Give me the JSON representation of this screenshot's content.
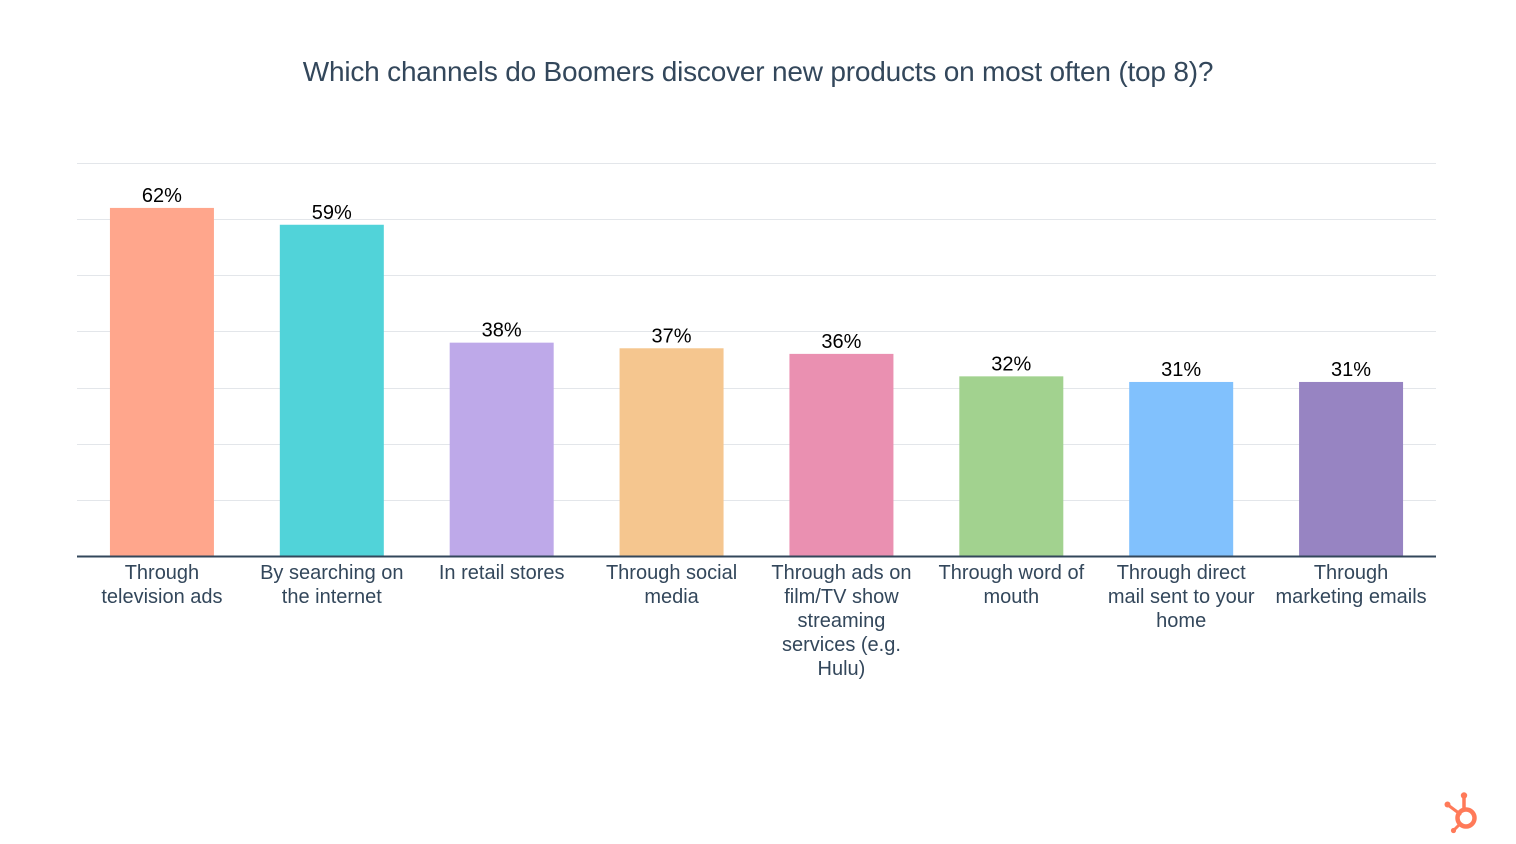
{
  "chart_data": {
    "type": "bar",
    "title": "Which channels do Boomers discover new products on most often (top 8)?",
    "categories": [
      "Through television ads",
      "By searching on the internet",
      "In retail stores",
      "Through social media",
      "Through ads on film/TV show streaming services (e.g. Hulu)",
      "Through word of mouth",
      "Through direct mail sent to your home",
      "Through marketing emails"
    ],
    "values": [
      62,
      59,
      38,
      37,
      36,
      32,
      31,
      31
    ],
    "value_labels": [
      "62%",
      "59%",
      "38%",
      "37%",
      "36%",
      "32%",
      "31%",
      "31%"
    ],
    "colors": [
      "#ffa68c",
      "#51d3d9",
      "#bea9e9",
      "#f5c68f",
      "#ea90b1",
      "#a2d28f",
      "#81c1fd",
      "#9784c2"
    ],
    "ylim": [
      0,
      70
    ],
    "xlabel": "",
    "ylabel": "",
    "grid": true,
    "legend": "none"
  },
  "branding": {
    "logo_icon": "hubspot-sprocket-icon",
    "logo_color": "#ff7a59"
  }
}
